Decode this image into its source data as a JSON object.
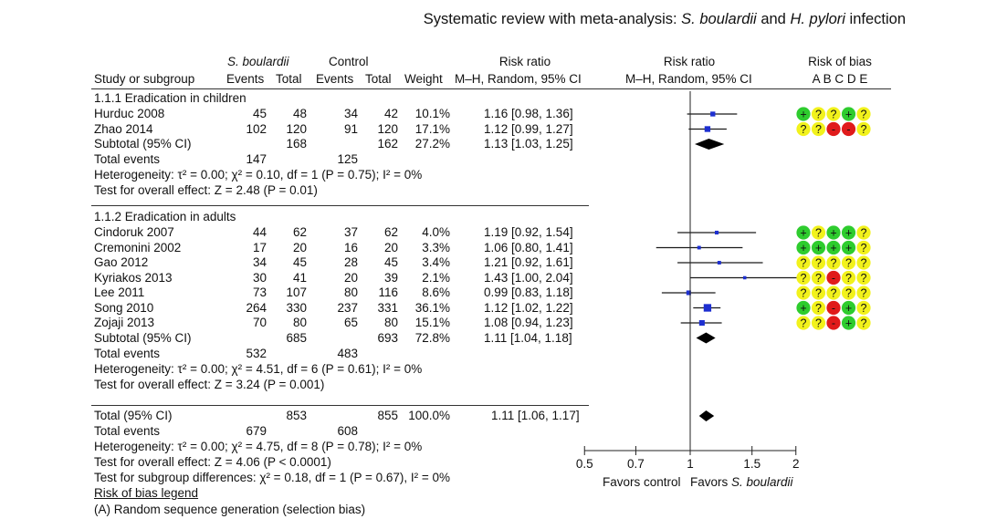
{
  "title": {
    "prefix": "Systematic review with meta-analysis: ",
    "drug": "S. boulardii",
    "mid": " and ",
    "pathogen": "H. pylori",
    "suffix": " infection"
  },
  "header": {
    "group1": "S. boulardii",
    "group2": "Control",
    "study_col": "Study or subgroup",
    "events": "Events",
    "total": "Total",
    "weight": "Weight",
    "rr_title": "Risk ratio",
    "rr_method": "M–H, Random, 95% CI",
    "plot_title": "Risk ratio",
    "plot_method": "M–H, Random, 95% CI",
    "bias_title": "Risk of bias",
    "bias_letters": "A B C D E"
  },
  "chart_data": {
    "type": "forest",
    "x_scale": "log",
    "x_ticks": [
      "0.5",
      "0.7",
      "1",
      "1.5",
      "2"
    ],
    "x_tick_values": [
      0.5,
      0.7,
      1,
      1.5,
      2
    ],
    "xlim": [
      0.5,
      2
    ],
    "favors_left": "Favors control",
    "favors_right_prefix": "Favors ",
    "favors_right_drug": "S. boulardii",
    "subgroups": [
      {
        "name": "1.1.1 Eradication in children",
        "studies": [
          {
            "study": "Hurduc 2008",
            "e1": "45",
            "n1": "48",
            "e2": "34",
            "n2": "42",
            "weight": "10.1%",
            "rr_text": "1.16 [0.98, 1.36]",
            "rr": 1.16,
            "lo": 0.98,
            "hi": 1.36,
            "w": 10.1,
            "bias": [
              "+",
              "?",
              "?",
              "+",
              "?"
            ]
          },
          {
            "study": "Zhao 2014",
            "e1": "102",
            "n1": "120",
            "e2": "91",
            "n2": "120",
            "weight": "17.1%",
            "rr_text": "1.12 [0.99, 1.27]",
            "rr": 1.12,
            "lo": 0.99,
            "hi": 1.27,
            "w": 17.1,
            "bias": [
              "?",
              "?",
              "-",
              "-",
              "?"
            ]
          }
        ],
        "subtotal": {
          "label": "Subtotal (95% CI)",
          "n1": "168",
          "n2": "162",
          "weight": "27.2%",
          "rr_text": "1.13 [1.03, 1.25]",
          "rr": 1.13,
          "lo": 1.03,
          "hi": 1.25
        },
        "total_events": {
          "label": "Total events",
          "e1": "147",
          "e2": "125"
        },
        "heterogeneity": "Heterogeneity: τ² = 0.00; χ² = 0.10, df = 1 (P = 0.75); I² = 0%",
        "overall": "Test for overall effect: Z = 2.48 (P = 0.01)"
      },
      {
        "name": "1.1.2 Eradication in adults",
        "studies": [
          {
            "study": "Cindoruk 2007",
            "e1": "44",
            "n1": "62",
            "e2": "37",
            "n2": "62",
            "weight": "4.0%",
            "rr_text": "1.19 [0.92, 1.54]",
            "rr": 1.19,
            "lo": 0.92,
            "hi": 1.54,
            "w": 4.0,
            "bias": [
              "+",
              "?",
              "+",
              "+",
              "?"
            ]
          },
          {
            "study": "Cremonini 2002",
            "e1": "17",
            "n1": "20",
            "e2": "16",
            "n2": "20",
            "weight": "3.3%",
            "rr_text": "1.06 [0.80, 1.41]",
            "rr": 1.06,
            "lo": 0.8,
            "hi": 1.41,
            "w": 3.3,
            "bias": [
              "+",
              "+",
              "+",
              "+",
              "?"
            ]
          },
          {
            "study": "Gao 2012",
            "e1": "34",
            "n1": "45",
            "e2": "28",
            "n2": "45",
            "weight": "3.4%",
            "rr_text": "1.21 [0.92, 1.61]",
            "rr": 1.21,
            "lo": 0.92,
            "hi": 1.61,
            "w": 3.4,
            "bias": [
              "?",
              "?",
              "?",
              "?",
              "?"
            ]
          },
          {
            "study": "Kyriakos 2013",
            "e1": "30",
            "n1": "41",
            "e2": "20",
            "n2": "39",
            "weight": "2.1%",
            "rr_text": "1.43 [1.00, 2.04]",
            "rr": 1.43,
            "lo": 1.0,
            "hi": 2.04,
            "w": 2.1,
            "bias": [
              "?",
              "?",
              "-",
              "?",
              "?"
            ]
          },
          {
            "study": "Lee 2011",
            "e1": "73",
            "n1": "107",
            "e2": "80",
            "n2": "116",
            "weight": "8.6%",
            "rr_text": "0.99 [0.83, 1.18]",
            "rr": 0.99,
            "lo": 0.83,
            "hi": 1.18,
            "w": 8.6,
            "bias": [
              "?",
              "?",
              "?",
              "?",
              "?"
            ]
          },
          {
            "study": "Song 2010",
            "e1": "264",
            "n1": "330",
            "e2": "237",
            "n2": "331",
            "weight": "36.1%",
            "rr_text": "1.12 [1.02, 1.22]",
            "rr": 1.12,
            "lo": 1.02,
            "hi": 1.22,
            "w": 36.1,
            "bias": [
              "+",
              "?",
              "-",
              "+",
              "?"
            ]
          },
          {
            "study": "Zojaji 2013",
            "e1": "70",
            "n1": "80",
            "e2": "65",
            "n2": "80",
            "weight": "15.1%",
            "rr_text": "1.08 [0.94, 1.23]",
            "rr": 1.08,
            "lo": 0.94,
            "hi": 1.23,
            "w": 15.1,
            "bias": [
              "?",
              "?",
              "-",
              "+",
              "?"
            ]
          }
        ],
        "subtotal": {
          "label": "Subtotal (95% CI)",
          "n1": "685",
          "n2": "693",
          "weight": "72.8%",
          "rr_text": "1.11 [1.04, 1.18]",
          "rr": 1.11,
          "lo": 1.04,
          "hi": 1.18
        },
        "total_events": {
          "label": "Total events",
          "e1": "532",
          "e2": "483"
        },
        "heterogeneity": "Heterogeneity: τ² = 0.00; χ² = 4.51, df = 6 (P = 0.61); I² = 0%",
        "overall": "Test for overall effect: Z = 3.24 (P = 0.001)"
      }
    ],
    "total": {
      "label": "Total (95% CI)",
      "n1": "853",
      "n2": "855",
      "weight": "100.0%",
      "rr_text": "1.11 [1.06, 1.17]",
      "rr": 1.11,
      "lo": 1.06,
      "hi": 1.17,
      "total_events": {
        "label": "Total events",
        "e1": "679",
        "e2": "608"
      },
      "heterogeneity": "Heterogeneity: τ² = 0.00; χ² = 4.75, df = 8 (P = 0.78); I² = 0%",
      "overall": "Test for overall effect: Z = 4.06 (P < 0.0001)",
      "subgroup_diff": "Test for subgroup differences: χ² = 0.18, df = 1 (P = 0.67), I² = 0%"
    }
  },
  "footer": {
    "legend_title": "Risk of bias legend",
    "legend_a": "(A) Random sequence generation (selection bias)"
  },
  "colors": {
    "marker": "#1d2fd0",
    "bias_low": "#2ecc2e",
    "bias_unclear": "#f2f21c",
    "bias_high": "#e01b1b"
  }
}
